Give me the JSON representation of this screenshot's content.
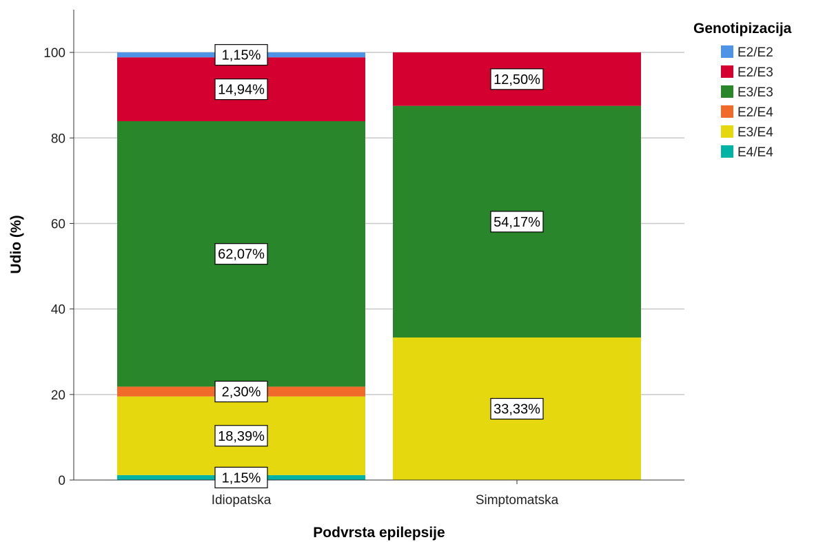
{
  "chart_data": {
    "type": "bar",
    "stacked": true,
    "title": "",
    "xlabel": "Podvrsta epilepsije",
    "ylabel": "Udio (%)",
    "categories": [
      "Idiopatska",
      "Simptomatska"
    ],
    "ylim": [
      0,
      110
    ],
    "yticks": [
      0,
      20,
      40,
      60,
      80,
      100
    ],
    "grid": true,
    "legend": {
      "title": "Genotipizacija",
      "position": "right"
    },
    "series": [
      {
        "name": "E4/E4",
        "color": "#00b3a4",
        "values": [
          1.15,
          0
        ],
        "labels": [
          "1,15%",
          ""
        ]
      },
      {
        "name": "E3/E4",
        "color": "#e5d80f",
        "values": [
          18.39,
          33.33
        ],
        "labels": [
          "18,39%",
          "33,33%"
        ]
      },
      {
        "name": "E2/E4",
        "color": "#f06b2a",
        "values": [
          2.3,
          0
        ],
        "labels": [
          "2,30%",
          ""
        ]
      },
      {
        "name": "E3/E3",
        "color": "#29862b",
        "values": [
          62.07,
          54.17
        ],
        "labels": [
          "62,07%",
          "54,17%"
        ]
      },
      {
        "name": "E2/E3",
        "color": "#d4002f",
        "values": [
          14.94,
          12.5
        ],
        "labels": [
          "14,94%",
          "12,50%"
        ]
      },
      {
        "name": "E2/E2",
        "color": "#4f93e6",
        "values": [
          1.15,
          0
        ],
        "labels": [
          "1,15%",
          ""
        ]
      }
    ],
    "legend_order": [
      "E2/E2",
      "E2/E3",
      "E3/E3",
      "E2/E4",
      "E3/E4",
      "E4/E4"
    ]
  }
}
